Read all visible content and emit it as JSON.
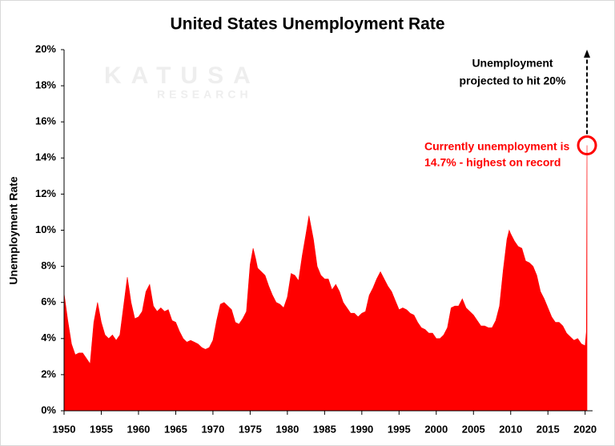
{
  "chart_data": {
    "type": "area",
    "title": "United States Unemployment Rate",
    "y_label": "Unemployment Rate",
    "color": "#ff0000",
    "x": [
      1950,
      1950.5,
      1951,
      1951.5,
      1952,
      1952.5,
      1953,
      1953.5,
      1954,
      1954.5,
      1955,
      1955.5,
      1956,
      1956.5,
      1957,
      1957.5,
      1958,
      1958.5,
      1959,
      1959.5,
      1960,
      1960.5,
      1961,
      1961.5,
      1962,
      1962.5,
      1963,
      1963.5,
      1964,
      1964.5,
      1965,
      1965.5,
      1966,
      1966.5,
      1967,
      1967.5,
      1968,
      1968.5,
      1969,
      1969.5,
      1970,
      1970.5,
      1971,
      1971.5,
      1972,
      1972.5,
      1973,
      1973.5,
      1974,
      1974.5,
      1975,
      1975.4,
      1975.75,
      1976,
      1976.5,
      1977,
      1977.5,
      1978,
      1978.5,
      1979,
      1979.5,
      1980,
      1980.5,
      1981,
      1981.5,
      1982,
      1982.5,
      1982.9,
      1983.5,
      1984,
      1984.5,
      1985,
      1985.5,
      1986,
      1986.5,
      1987,
      1987.5,
      1988,
      1988.5,
      1989,
      1989.5,
      1990,
      1990.5,
      1991,
      1991.5,
      1992,
      1992.5,
      1993,
      1993.5,
      1994,
      1994.5,
      1995,
      1995.5,
      1996,
      1996.5,
      1997,
      1997.5,
      1998,
      1998.5,
      1999,
      1999.5,
      2000,
      2000.5,
      2001,
      2001.5,
      2002,
      2002.5,
      2003,
      2003.5,
      2004,
      2004.5,
      2005,
      2005.5,
      2006,
      2006.5,
      2007,
      2007.5,
      2008,
      2008.5,
      2009,
      2009.5,
      2009.8,
      2010,
      2010.5,
      2011,
      2011.5,
      2012,
      2012.5,
      2013,
      2013.5,
      2014,
      2014.5,
      2015,
      2015.5,
      2016,
      2016.5,
      2017,
      2017.5,
      2018,
      2018.5,
      2019,
      2019.5,
      2020,
      2020.17,
      2020.25
    ],
    "values": [
      6.5,
      5.0,
      3.7,
      3.1,
      3.2,
      3.2,
      2.9,
      2.6,
      4.9,
      6.0,
      4.9,
      4.2,
      4.0,
      4.2,
      3.9,
      4.2,
      5.8,
      7.4,
      6.0,
      5.1,
      5.2,
      5.5,
      6.6,
      7.0,
      5.8,
      5.5,
      5.7,
      5.5,
      5.6,
      5.0,
      4.9,
      4.4,
      4.0,
      3.8,
      3.9,
      3.8,
      3.7,
      3.5,
      3.4,
      3.5,
      3.9,
      5.0,
      5.9,
      6.0,
      5.8,
      5.6,
      4.9,
      4.8,
      5.1,
      5.5,
      8.1,
      9.0,
      8.4,
      7.9,
      7.7,
      7.5,
      6.9,
      6.4,
      6.0,
      5.9,
      5.7,
      6.3,
      7.6,
      7.5,
      7.2,
      8.6,
      9.8,
      10.8,
      9.5,
      8.0,
      7.5,
      7.3,
      7.3,
      6.7,
      7.0,
      6.6,
      6.0,
      5.7,
      5.4,
      5.4,
      5.2,
      5.4,
      5.5,
      6.4,
      6.8,
      7.3,
      7.7,
      7.3,
      6.9,
      6.6,
      6.1,
      5.6,
      5.7,
      5.6,
      5.4,
      5.3,
      4.9,
      4.6,
      4.5,
      4.3,
      4.3,
      4.0,
      4.0,
      4.2,
      4.6,
      5.7,
      5.8,
      5.8,
      6.2,
      5.7,
      5.5,
      5.3,
      5.0,
      4.7,
      4.7,
      4.6,
      4.6,
      5.0,
      5.8,
      7.8,
      9.5,
      10.0,
      9.8,
      9.4,
      9.1,
      9.0,
      8.3,
      8.2,
      8.0,
      7.5,
      6.6,
      6.2,
      5.7,
      5.2,
      4.9,
      4.9,
      4.7,
      4.3,
      4.1,
      3.9,
      4.0,
      3.7,
      3.6,
      4.4,
      14.7
    ],
    "xlim": [
      1950,
      2021
    ],
    "xticks": [
      1950,
      1955,
      1960,
      1965,
      1970,
      1975,
      1980,
      1985,
      1990,
      1995,
      2000,
      2005,
      2010,
      2015,
      2020
    ],
    "ylim": [
      0,
      20
    ],
    "yticks": [
      {
        "value": 0,
        "label": "0%"
      },
      {
        "value": 2,
        "label": "2%"
      },
      {
        "value": 4,
        "label": "4%"
      },
      {
        "value": 6,
        "label": "6%"
      },
      {
        "value": 8,
        "label": "8%"
      },
      {
        "value": 10,
        "label": "10%"
      },
      {
        "value": 12,
        "label": "12%"
      },
      {
        "value": 14,
        "label": "14%"
      },
      {
        "value": 16,
        "label": "16%"
      },
      {
        "value": 18,
        "label": "18%"
      },
      {
        "value": 20,
        "label": "20%"
      }
    ],
    "annotation_projection": [
      "Unemployment",
      "projected to hit 20%"
    ],
    "annotation_current": [
      "Currently unemployment is",
      "14.7% - highest on record"
    ],
    "watermark": [
      "KATUSA",
      "RESEARCH"
    ]
  }
}
